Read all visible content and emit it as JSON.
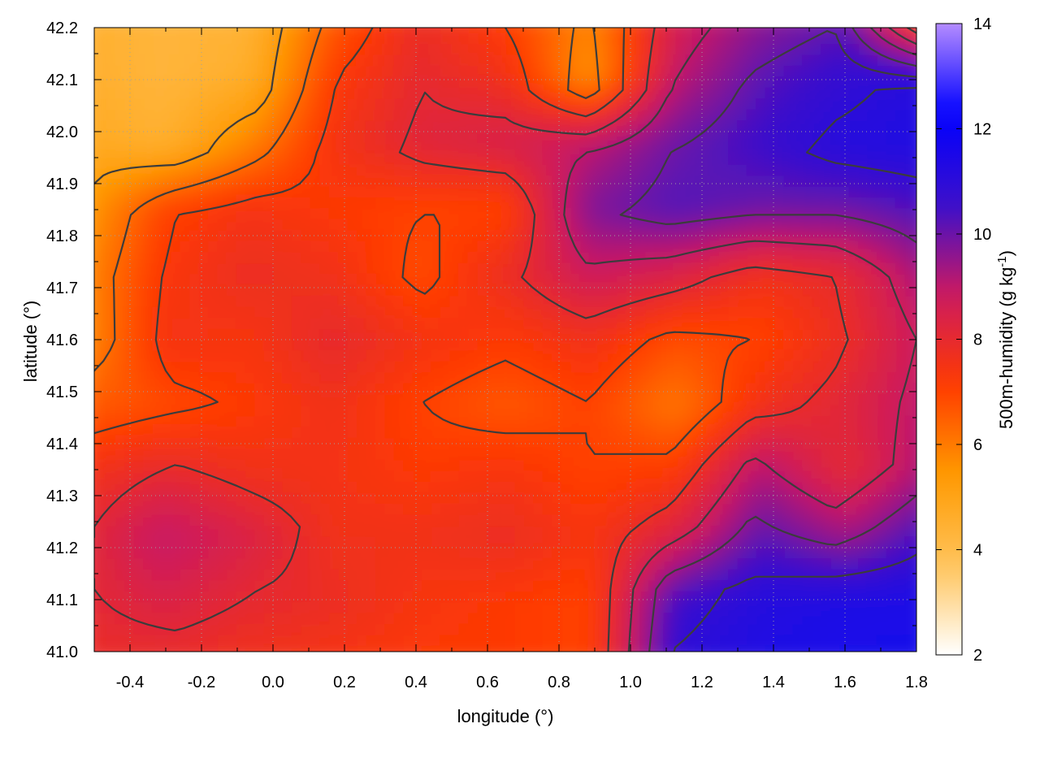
{
  "chart_data": {
    "type": "heatmap",
    "xlabel": "longitude (°)",
    "ylabel": "latitude (°)",
    "colorbar_label": "500m-humidity (g kg",
    "colorbar_label_sup": "-1",
    "colorbar_label_close": ")",
    "xlim": [
      -0.5,
      1.8
    ],
    "ylim": [
      41.0,
      42.2
    ],
    "clim": [
      2,
      14
    ],
    "x_ticks": [
      -0.4,
      -0.2,
      0.0,
      0.2,
      0.4,
      0.6,
      0.8,
      1.0,
      1.2,
      1.4,
      1.6,
      1.8
    ],
    "x_tick_labels": [
      "-0.4",
      "-0.2",
      "0.0",
      "0.2",
      "0.4",
      "0.6",
      "0.8",
      "1.0",
      "1.2",
      "1.4",
      "1.6",
      "1.8"
    ],
    "y_ticks": [
      41.0,
      41.1,
      41.2,
      41.3,
      41.4,
      41.5,
      41.6,
      41.7,
      41.8,
      41.9,
      42.0,
      42.1,
      42.2
    ],
    "y_tick_labels": [
      "41.0",
      "41.1",
      "41.2",
      "41.3",
      "41.4",
      "41.5",
      "41.6",
      "41.7",
      "41.8",
      "41.9",
      "42.0",
      "42.1",
      "42.2"
    ],
    "c_ticks": [
      2,
      4,
      6,
      8,
      10,
      12,
      14
    ],
    "c_tick_labels": [
      "2",
      "4",
      "6",
      "8",
      "10",
      "12",
      "14"
    ],
    "grid": true,
    "contours": true,
    "colormap": [
      "#ffffff",
      "#ffc35a",
      "#ff9a00",
      "#ff3a00",
      "#cc1a60",
      "#3a10cc",
      "#0000ff",
      "#b48cff"
    ],
    "contour_color": "#3c3c3c",
    "humidity_grid": {
      "lon": [
        -0.5,
        -0.27,
        -0.04,
        0.19,
        0.42,
        0.65,
        0.88,
        1.11,
        1.34,
        1.57,
        1.8
      ],
      "lat": [
        42.2,
        42.08,
        41.96,
        41.84,
        41.72,
        41.6,
        41.48,
        41.36,
        41.24,
        41.12,
        41.0
      ],
      "values": [
        [
          4.5,
          4.3,
          4.4,
          6.5,
          7.8,
          7.0,
          5.8,
          8.5,
          9.5,
          10.0,
          5.5
        ],
        [
          4.6,
          4.3,
          4.6,
          7.2,
          8.0,
          7.6,
          5.5,
          9.0,
          10.2,
          10.8,
          11.2
        ],
        [
          4.8,
          4.5,
          5.8,
          7.5,
          8.2,
          8.5,
          9.0,
          10.0,
          10.6,
          11.2,
          11.4
        ],
        [
          5.2,
          7.0,
          7.5,
          7.2,
          7.0,
          7.0,
          9.8,
          10.3,
          10.0,
          10.0,
          10.4
        ],
        [
          5.6,
          7.3,
          7.8,
          7.6,
          6.8,
          7.8,
          8.8,
          8.4,
          7.6,
          8.0,
          9.5
        ],
        [
          5.5,
          7.5,
          7.4,
          8.0,
          7.5,
          7.2,
          7.6,
          6.8,
          7.0,
          7.8,
          9.0
        ],
        [
          6.5,
          6.8,
          7.2,
          7.6,
          7.0,
          6.6,
          7.0,
          6.0,
          7.6,
          8.2,
          9.2
        ],
        [
          7.5,
          8.0,
          7.6,
          7.5,
          7.2,
          7.4,
          7.0,
          7.2,
          9.2,
          8.0,
          9.4
        ],
        [
          8.0,
          9.0,
          8.4,
          7.6,
          7.6,
          7.8,
          7.4,
          8.4,
          10.2,
          9.4,
          10.6
        ],
        [
          8.0,
          8.4,
          8.0,
          7.8,
          7.4,
          7.2,
          7.0,
          10.6,
          11.2,
          11.4,
          11.5
        ],
        [
          7.8,
          7.8,
          7.6,
          7.4,
          7.2,
          7.2,
          7.0,
          11.0,
          11.4,
          11.6,
          11.6
        ]
      ]
    }
  }
}
